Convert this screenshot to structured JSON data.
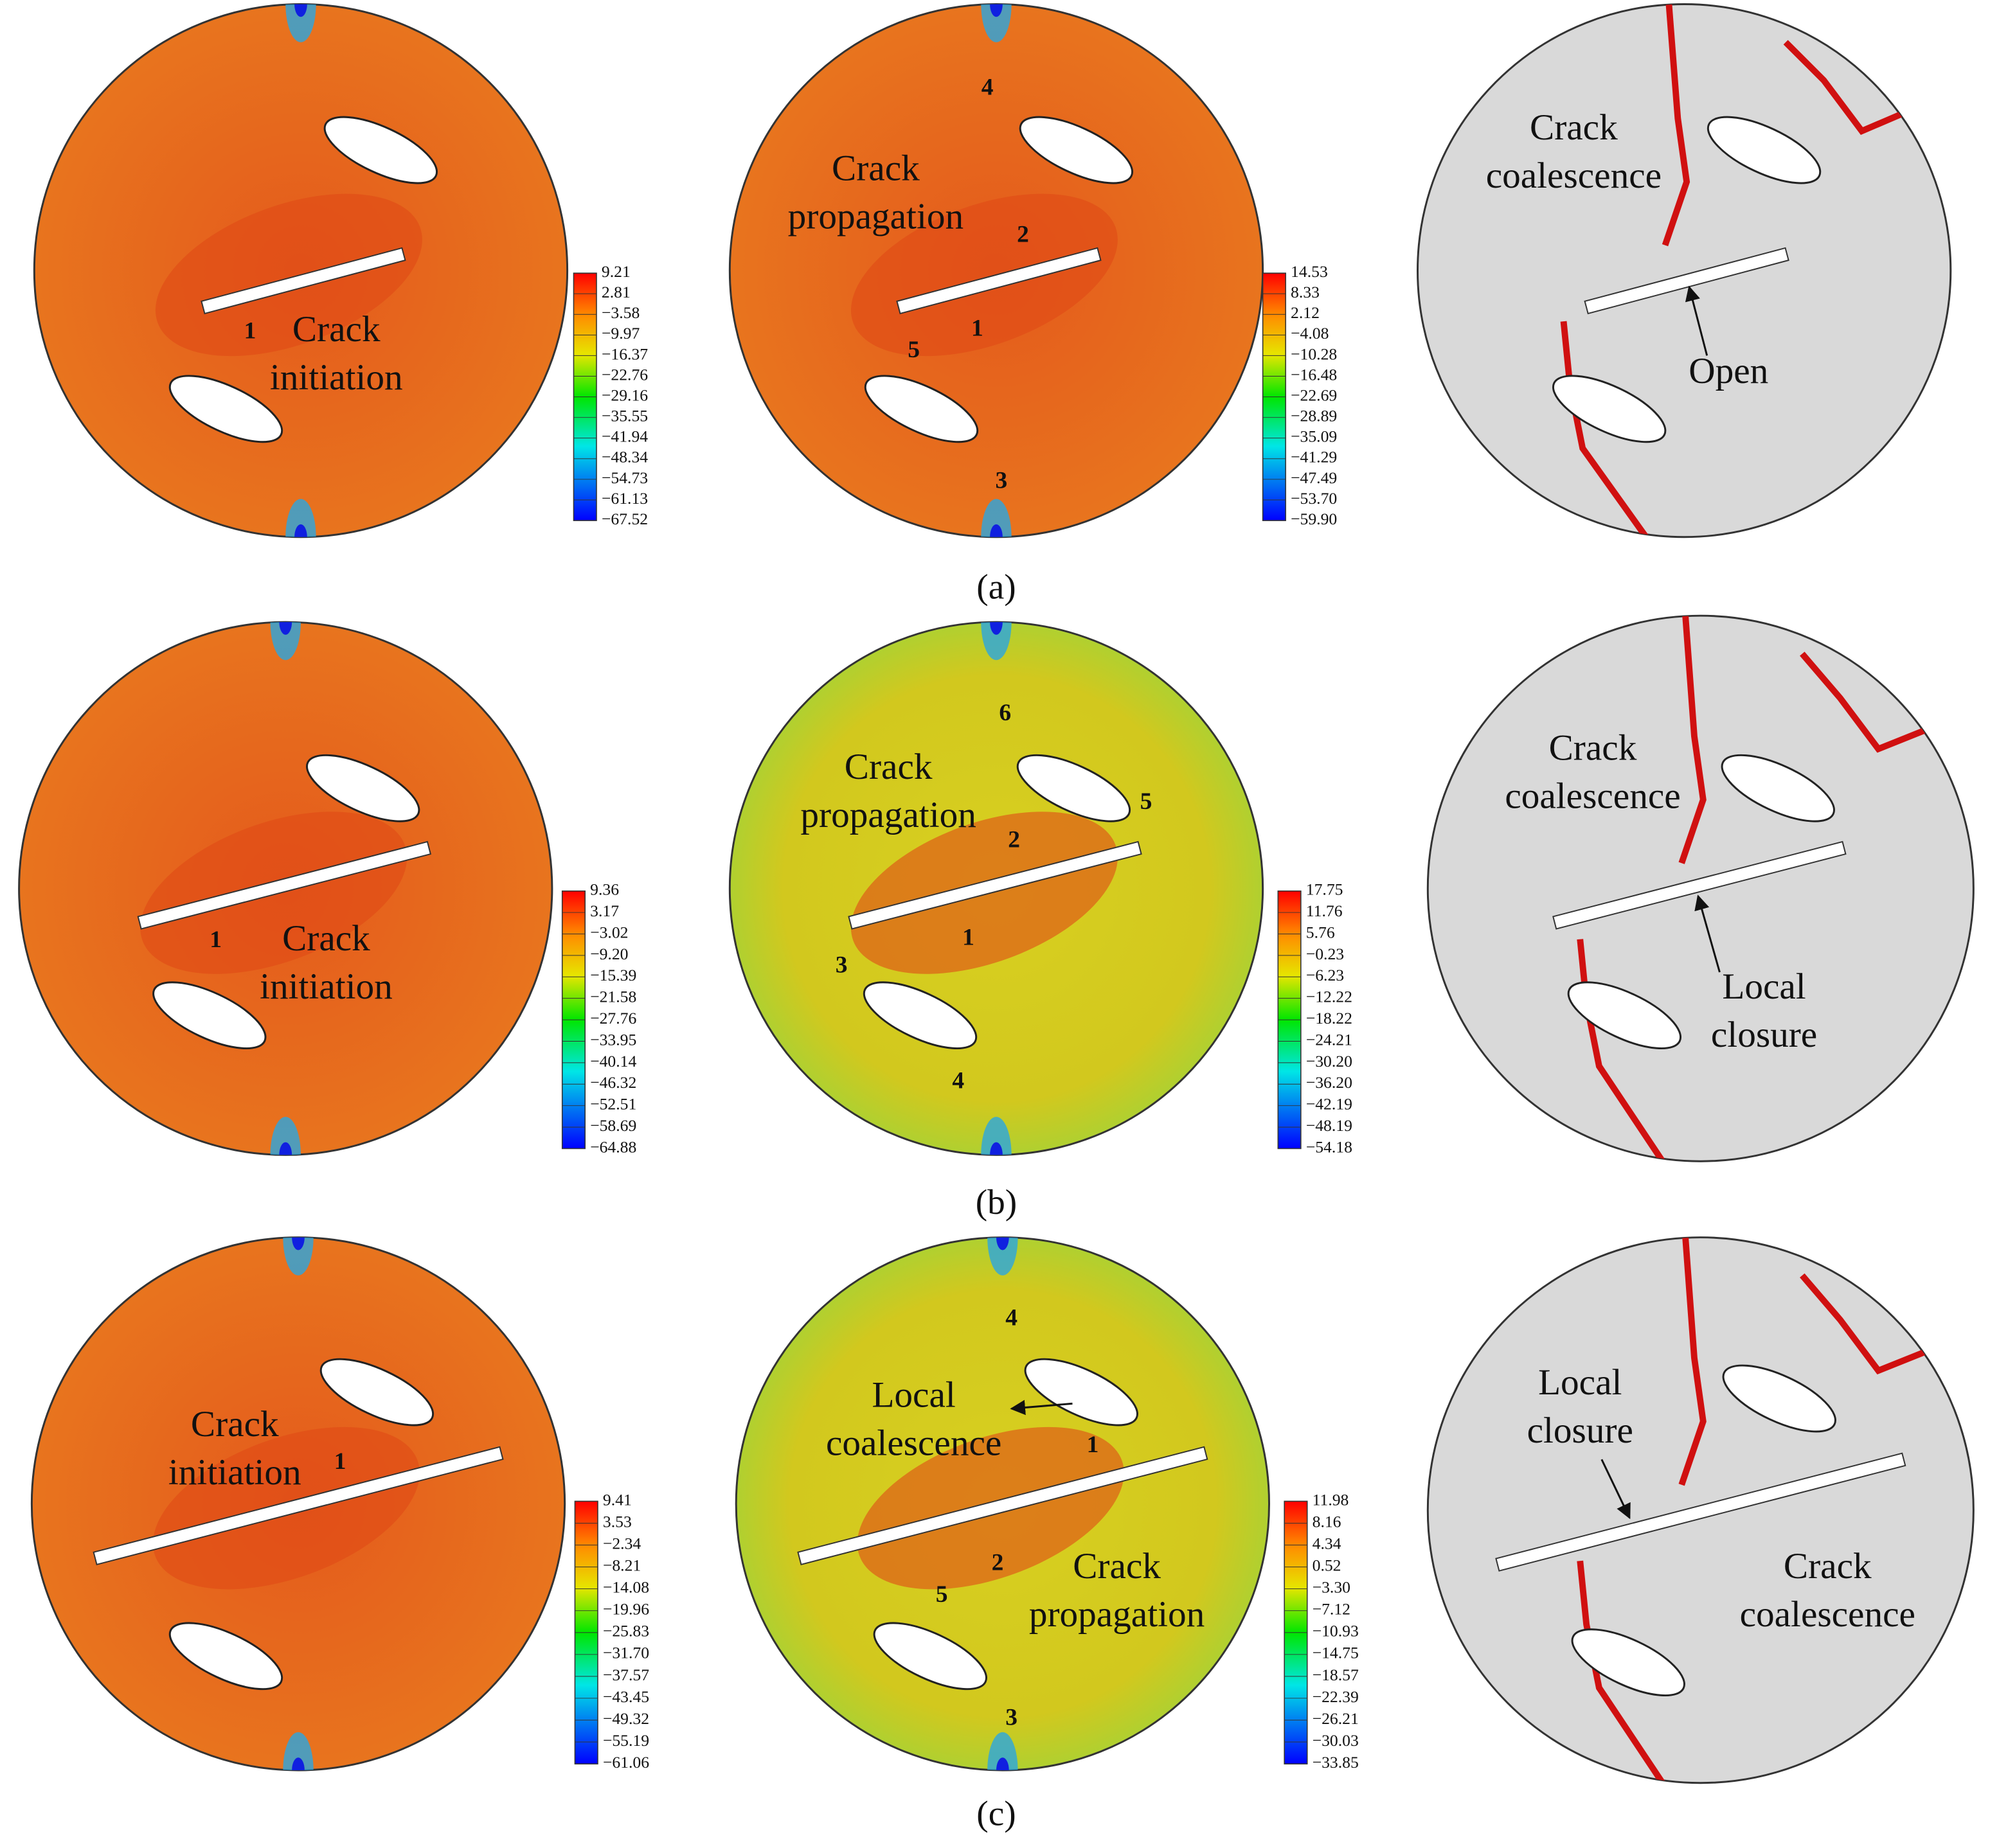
{
  "rows": [
    {
      "caption": "(a)",
      "panels": [
        {
          "numbers": [
            "1"
          ],
          "annotations": [
            {
              "lines": [
                "Crack",
                "initiation"
              ]
            }
          ],
          "colorbar": [
            "9.21",
            "2.81",
            "−3.58",
            "−9.97",
            "−16.37",
            "−22.76",
            "−29.16",
            "−35.55",
            "−41.94",
            "−48.34",
            "−54.73",
            "−61.13",
            "−67.52"
          ]
        },
        {
          "numbers": [
            "4",
            "2",
            "1",
            "5",
            "3"
          ],
          "annotations": [
            {
              "lines": [
                "Crack",
                "propagation"
              ]
            }
          ],
          "colorbar": [
            "14.53",
            "8.33",
            "2.12",
            "−4.08",
            "−10.28",
            "−16.48",
            "−22.69",
            "−28.89",
            "−35.09",
            "−41.29",
            "−47.49",
            "−53.70",
            "−59.90"
          ]
        },
        {
          "annotations": [
            {
              "lines": [
                "Crack",
                "coalescence"
              ]
            },
            {
              "lines": [
                "Open"
              ]
            }
          ]
        }
      ]
    },
    {
      "caption": "(b)",
      "panels": [
        {
          "numbers": [
            "1"
          ],
          "annotations": [
            {
              "lines": [
                "Crack",
                "initiation"
              ]
            }
          ],
          "colorbar": [
            "9.36",
            "3.17",
            "−3.02",
            "−9.20",
            "−15.39",
            "−21.58",
            "−27.76",
            "−33.95",
            "−40.14",
            "−46.32",
            "−52.51",
            "−58.69",
            "−64.88"
          ]
        },
        {
          "numbers": [
            "6",
            "5",
            "2",
            "1",
            "3",
            "4"
          ],
          "annotations": [
            {
              "lines": [
                "Crack",
                "propagation"
              ]
            }
          ],
          "colorbar": [
            "17.75",
            "11.76",
            "5.76",
            "−0.23",
            "−6.23",
            "−12.22",
            "−18.22",
            "−24.21",
            "−30.20",
            "−36.20",
            "−42.19",
            "−48.19",
            "−54.18"
          ]
        },
        {
          "annotations": [
            {
              "lines": [
                "Crack",
                "coalescence"
              ]
            },
            {
              "lines": [
                "Local",
                "closure"
              ]
            }
          ]
        }
      ]
    },
    {
      "caption": "(c)",
      "panels": [
        {
          "numbers": [
            "1"
          ],
          "annotations": [
            {
              "lines": [
                "Crack",
                "initiation"
              ]
            }
          ],
          "colorbar": [
            "9.41",
            "3.53",
            "−2.34",
            "−8.21",
            "−14.08",
            "−19.96",
            "−25.83",
            "−31.70",
            "−37.57",
            "−43.45",
            "−49.32",
            "−55.19",
            "−61.06"
          ]
        },
        {
          "numbers": [
            "4",
            "1",
            "2",
            "5",
            "3"
          ],
          "annotations": [
            {
              "lines": [
                "Local",
                "coalescence"
              ]
            },
            {
              "lines": [
                "Crack",
                "propagation"
              ]
            }
          ],
          "colorbar": [
            "11.98",
            "8.16",
            "4.34",
            "0.52",
            "−3.30",
            "−7.12",
            "−10.93",
            "−14.75",
            "−18.57",
            "−22.39",
            "−26.21",
            "−30.03",
            "−33.85"
          ]
        },
        {
          "annotations": [
            {
              "lines": [
                "Local",
                "closure"
              ]
            },
            {
              "lines": [
                "Crack",
                "coalescence"
              ]
            }
          ]
        }
      ]
    }
  ]
}
